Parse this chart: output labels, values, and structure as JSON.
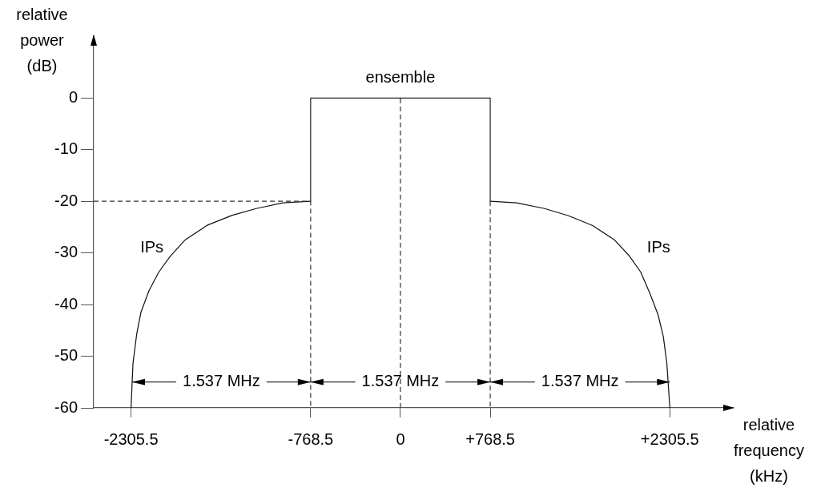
{
  "chart_data": {
    "type": "line",
    "xlabel": "relative frequency (kHz)",
    "ylabel": "relative power (dB)",
    "xlim": [
      -2625,
      2845
    ],
    "ylim": [
      -60,
      12
    ],
    "xticks": [
      -2305.5,
      -768.5,
      0,
      {
        "value": 768.5,
        "label": "+768.5"
      },
      {
        "value": 2305.5,
        "label": "+2305.5"
      }
    ],
    "yticks": [
      -60,
      -50,
      -40,
      -30,
      -20,
      -10,
      0
    ],
    "series": [
      {
        "color": "#333333",
        "line_style": "dashed",
        "x": [
          -2625,
          -768.5,
          -768.5,
          0,
          768.5,
          768.5
        ],
        "values": [
          -20,
          -20,
          -60,
          null,
          -20,
          -60
        ]
      },
      {
        "color": "#222222",
        "line_style": "solid",
        "x": [
          -768.5,
          -768.5,
          768.5,
          768.5
        ],
        "values": [
          -20,
          0,
          0,
          -20
        ]
      },
      {
        "color": "#111111",
        "line_style": "solid",
        "x": [
          -2305.5,
          -2289,
          -2257,
          -2221,
          -2152,
          -2068,
          -1969,
          -1839,
          -1650,
          -1439,
          -1234,
          -1006,
          -768.5,
          0,
          768.5,
          994,
          1234,
          1439,
          1645,
          1828,
          1960,
          2056,
          2136,
          2205,
          2250,
          2280,
          2305.5
        ],
        "values": [
          -60,
          -51.4,
          -45.7,
          -41.5,
          -37.3,
          -33.7,
          -30.6,
          -27.4,
          -24.6,
          -22.7,
          -21.4,
          -20.3,
          -20,
          null,
          -20,
          -20.3,
          -21.4,
          -22.8,
          -24.7,
          -27.4,
          -30.6,
          -33.7,
          -37.9,
          -42,
          -46.2,
          -51.4,
          -60
        ]
      }
    ],
    "ref_lines": [
      {
        "axis": "x",
        "value": 0,
        "color": "#333333",
        "line_style": "dashed"
      }
    ],
    "annotations": [
      "ensemble",
      "IPs",
      "IPs",
      {
        "text": "1.537 MHz",
        "x": -2296,
        "y": -55
      },
      {
        "text": "1.537 MHz",
        "x": -768.5,
        "y": -55
      },
      {
        "text": "1.537 MHz",
        "x": 768.5,
        "y": -55
      }
    ]
  }
}
